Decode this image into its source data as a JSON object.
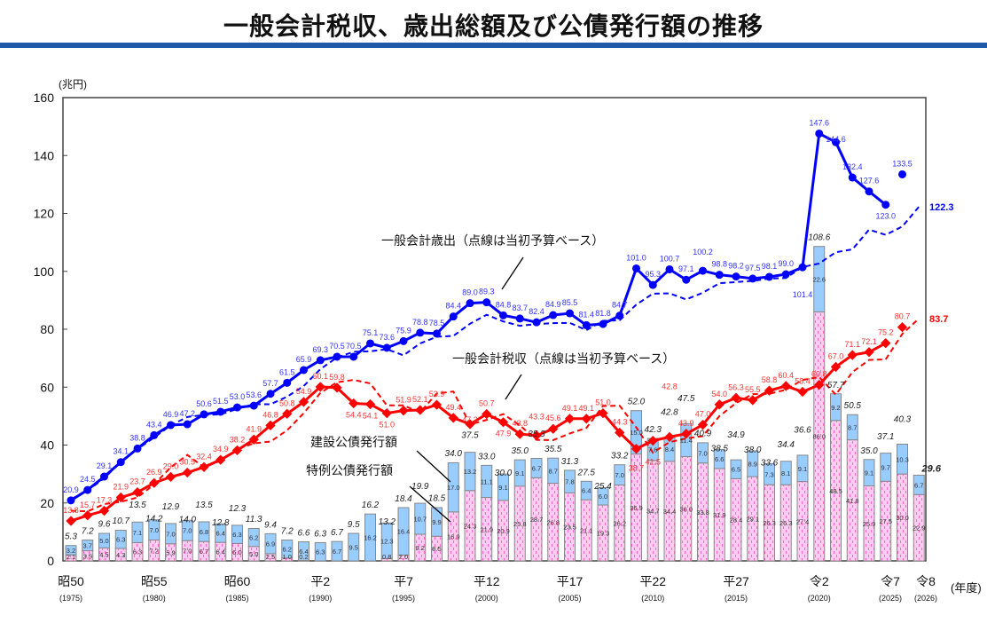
{
  "title": "一般会計税収、歳出総額及び公債発行額の推移",
  "chart_data": {
    "type": "bar+line",
    "ylabel": "(兆円)",
    "xlabel": "(年度)",
    "ylim": [
      0,
      160
    ],
    "yticks": [
      0,
      20,
      40,
      60,
      80,
      100,
      120,
      140,
      160
    ],
    "grid": false,
    "years": [
      1975,
      1976,
      1977,
      1978,
      1979,
      1980,
      1981,
      1982,
      1983,
      1984,
      1985,
      1986,
      1987,
      1988,
      1989,
      1990,
      1991,
      1992,
      1993,
      1994,
      1995,
      1996,
      1997,
      1998,
      1999,
      2000,
      2001,
      2002,
      2003,
      2004,
      2005,
      2006,
      2007,
      2008,
      2009,
      2010,
      2011,
      2012,
      2013,
      2014,
      2015,
      2016,
      2017,
      2018,
      2019,
      2020,
      2021,
      2022,
      2023,
      2024,
      2025,
      2026
    ],
    "xtick_labels": [
      {
        "year": 1975,
        "era": "昭50",
        "ad": "(1975)"
      },
      {
        "year": 1980,
        "era": "昭55",
        "ad": "(1980)"
      },
      {
        "year": 1985,
        "era": "昭60",
        "ad": "(1985)"
      },
      {
        "year": 1990,
        "era": "平2",
        "ad": "(1990)"
      },
      {
        "year": 1995,
        "era": "平7",
        "ad": "(1995)"
      },
      {
        "year": 2000,
        "era": "平12",
        "ad": "(2000)"
      },
      {
        "year": 2005,
        "era": "平17",
        "ad": "(2005)"
      },
      {
        "year": 2010,
        "era": "平22",
        "ad": "(2010)"
      },
      {
        "year": 2015,
        "era": "平27",
        "ad": "(2015)"
      },
      {
        "year": 2020,
        "era": "令2",
        "ad": "(2020)"
      },
      {
        "year": 2025,
        "era": "令7",
        "ad": "(2025)"
      },
      {
        "year": 2026,
        "era": "令8",
        "ad": "(2026)"
      }
    ],
    "bonds_total": [
      5.3,
      7.2,
      9.6,
      10.7,
      13.5,
      14.2,
      12.9,
      14.0,
      13.5,
      12.8,
      12.3,
      11.3,
      9.4,
      7.2,
      6.6,
      6.3,
      6.7,
      9.5,
      16.2,
      13.2,
      18.4,
      19.9,
      18.5,
      34.0,
      37.5,
      33.0,
      30.0,
      35.0,
      35.3,
      35.5,
      31.3,
      27.5,
      25.4,
      33.2,
      52.0,
      42.3,
      42.8,
      47.5,
      40.9,
      38.5,
      34.9,
      38.0,
      33.6,
      34.4,
      36.6,
      108.6,
      57.7,
      50.5,
      35.0,
      37.1,
      40.3,
      29.6
    ],
    "series": [
      {
        "name": "建設公債発行額",
        "kind": "stacked-bar",
        "color": "#99ccff",
        "values": [
          3.2,
          3.7,
          5.0,
          6.3,
          7.1,
          7.0,
          7.0,
          7.0,
          6.8,
          6.4,
          6.3,
          6.2,
          6.9,
          6.2,
          6.4,
          6.3,
          6.7,
          9.5,
          16.2,
          12.3,
          16.4,
          10.7,
          9.9,
          17.0,
          13.2,
          11.1,
          9.1,
          9.1,
          6.7,
          8.7,
          7.8,
          6.4,
          6.0,
          7.0,
          15.0,
          7.6,
          8.4,
          11.4,
          7.0,
          6.6,
          6.5,
          8.9,
          7.3,
          8.1,
          9.1,
          22.6,
          9.2,
          8.7,
          9.1,
          9.7,
          10.3,
          6.7
        ]
      },
      {
        "name": "特例公債発行額",
        "kind": "stacked-bar",
        "color": "#ffccee",
        "values": [
          2.1,
          3.5,
          4.5,
          4.3,
          6.3,
          7.2,
          5.9,
          7.0,
          6.7,
          6.4,
          6.0,
          5.0,
          2.5,
          1.0,
          0.2,
          0,
          0,
          0,
          0,
          0.8,
          2.0,
          9.2,
          8.5,
          16.9,
          24.3,
          21.9,
          20.9,
          25.8,
          28.7,
          26.8,
          23.5,
          21.1,
          19.3,
          26.2,
          36.9,
          34.7,
          34.4,
          36.0,
          33.8,
          31.9,
          28.4,
          29.1,
          26.3,
          26.3,
          27.4,
          86.0,
          48.5,
          41.8,
          25.9,
          27.5,
          30.0,
          22.9
        ]
      },
      {
        "name": "一般会計歳出（点線は当初予算ベース）",
        "kind": "line",
        "color": "#0000ff",
        "values": [
          20.9,
          24.5,
          29.1,
          34.1,
          38.8,
          43.4,
          46.9,
          47.2,
          50.6,
          51.5,
          53.0,
          53.6,
          57.7,
          61.5,
          65.9,
          69.3,
          70.5,
          70.5,
          75.1,
          73.6,
          75.9,
          78.8,
          78.5,
          84.4,
          89.0,
          89.3,
          84.8,
          83.7,
          82.4,
          84.9,
          85.5,
          81.4,
          81.8,
          84.7,
          101.0,
          95.3,
          100.7,
          97.1,
          100.2,
          98.8,
          98.2,
          97.5,
          98.1,
          99.0,
          101.4,
          147.6,
          144.6,
          132.4,
          127.6,
          123.0,
          133.5,
          null
        ],
        "budget": [
          21.3,
          24.3,
          28.5,
          34.3,
          38.6,
          42.6,
          46.8,
          49.7,
          50.4,
          50.6,
          52.5,
          54.1,
          54.1,
          56.7,
          60.4,
          66.2,
          70.3,
          72.2,
          72.4,
          73.1,
          71.0,
          75.1,
          77.4,
          77.7,
          81.9,
          85.0,
          82.7,
          81.2,
          81.8,
          82.1,
          82.2,
          79.7,
          82.9,
          83.1,
          88.5,
          92.3,
          92.4,
          90.3,
          92.6,
          95.9,
          96.3,
          96.7,
          97.5,
          97.7,
          101.5,
          102.7,
          106.6,
          107.6,
          114.4,
          112.6,
          115.5,
          122.3
        ]
      },
      {
        "name": "一般会計税収（点線は当初予算ベース）",
        "kind": "line",
        "color": "#ff0000",
        "values": [
          13.8,
          15.7,
          17.3,
          21.9,
          23.7,
          26.9,
          29.0,
          30.5,
          32.4,
          34.9,
          38.2,
          41.9,
          46.8,
          50.8,
          54.9,
          60.1,
          59.8,
          54.4,
          54.1,
          51.0,
          51.9,
          52.1,
          53.9,
          49.4,
          47.2,
          50.7,
          47.9,
          43.8,
          43.3,
          45.6,
          49.1,
          49.1,
          51.0,
          44.3,
          38.7,
          41.5,
          42.8,
          43.9,
          47.0,
          54.0,
          56.3,
          55.5,
          58.8,
          60.4,
          58.4,
          60.8,
          67.0,
          71.1,
          72.1,
          75.2,
          80.7,
          null
        ],
        "budget": [
          17.3,
          17.1,
          19.6,
          20.4,
          21.9,
          26.4,
          32.3,
          36.6,
          32.3,
          34.6,
          38.6,
          40.6,
          41.2,
          45.1,
          51.0,
          58.0,
          61.7,
          62.5,
          61.3,
          53.7,
          53.7,
          51.3,
          57.8,
          58.5,
          47.1,
          48.7,
          50.7,
          46.8,
          41.8,
          41.7,
          44.0,
          45.9,
          53.5,
          53.6,
          46.1,
          37.4,
          41.0,
          42.3,
          43.1,
          50.0,
          54.5,
          57.6,
          57.7,
          59.1,
          62.5,
          63.5,
          57.4,
          65.2,
          69.4,
          69.6,
          78.4,
          83.7
        ]
      }
    ],
    "end_labels": {
      "expenditure_budget": "122.3",
      "tax_budget": "83.7",
      "bonds_last": "29.6"
    },
    "annotations": {
      "expenditure": "一般会計歳出（点線は当初予算ベース）",
      "tax": "一般会計税収（点線は当初予算ベース）",
      "construction": "建設公債発行額",
      "special": "特例公債発行額"
    }
  }
}
